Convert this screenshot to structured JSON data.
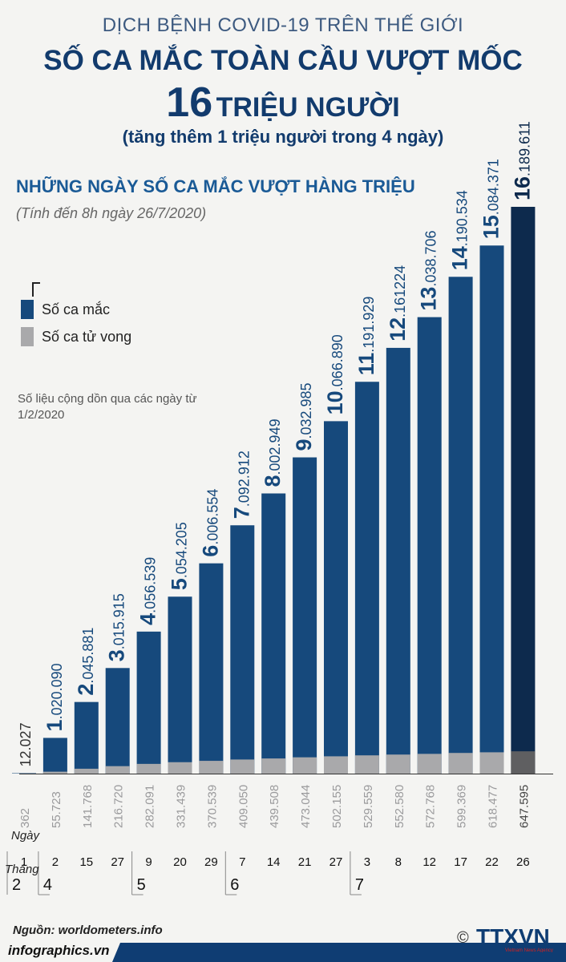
{
  "header": {
    "kicker": "DỊCH BỆNH COVID-19 TRÊN THẾ GIỚI",
    "headline": "SỐ CA MẮC TOÀN CẦU VƯỢT MỐC",
    "headline_number": "16",
    "headline_unit": "TRIỆU NGƯỜI",
    "subheadline": "(tăng thêm 1 triệu người trong 4 ngày)"
  },
  "chart_title": "NHỮNG NGÀY SỐ CA MẮC VƯỢT HÀNG TRIỆU",
  "chart_note": "(Tính đến 8h ngày 26/7/2020)",
  "cumulative_note": "Số liệu cộng dồn qua các ngày từ 1/2/2020",
  "legend": {
    "cases": "Số ca mắc",
    "deaths": "Số ca tử vong"
  },
  "axis_labels": {
    "day": "Ngày",
    "month": "Tháng"
  },
  "source": "Nguồn: worldometers.info",
  "footer": "infographics.vn",
  "logo": {
    "copyright": "©",
    "name": "TTXVN",
    "tagline": "Vietnam News Agency"
  },
  "colors": {
    "cases": "#16497c",
    "cases_highlight": "#0d2a4d",
    "deaths": "#a9a9ab",
    "deaths_highlight": "#5f5f61",
    "title": "#123b6d",
    "footer_blue": "#0f3d73"
  },
  "chart_data": {
    "type": "bar",
    "categories": [
      "1/2",
      "2/4",
      "15/4",
      "27/4",
      "9/5",
      "20/5",
      "29/5",
      "7/6",
      "14/6",
      "21/6",
      "27/6",
      "3/7",
      "8/7",
      "12/7",
      "17/7",
      "22/7",
      "26/7"
    ],
    "days": [
      "1",
      "2",
      "15",
      "27",
      "9",
      "20",
      "29",
      "7",
      "14",
      "21",
      "27",
      "3",
      "8",
      "12",
      "17",
      "22",
      "26"
    ],
    "months": [
      {
        "label": "2",
        "start": 0,
        "end": 0
      },
      {
        "label": "4",
        "start": 1,
        "end": 3
      },
      {
        "label": "5",
        "start": 4,
        "end": 6
      },
      {
        "label": "6",
        "start": 7,
        "end": 10
      },
      {
        "label": "7",
        "start": 11,
        "end": 16
      }
    ],
    "series": [
      {
        "name": "Số ca mắc",
        "values": [
          12027,
          1020090,
          2045881,
          3015915,
          4056539,
          5054205,
          6006554,
          7092912,
          8002949,
          9032985,
          10066890,
          11191929,
          12161224,
          13038706,
          14190534,
          15084371,
          16189611
        ],
        "labels": [
          {
            "big": "",
            "small": "12.027"
          },
          {
            "big": "1",
            "small": ".020.090"
          },
          {
            "big": "2",
            "small": ".045.881"
          },
          {
            "big": "3",
            "small": ".015.915"
          },
          {
            "big": "4",
            "small": ".056.539"
          },
          {
            "big": "5",
            "small": ".054.205"
          },
          {
            "big": "6",
            "small": ".006.554"
          },
          {
            "big": "7",
            "small": ".092.912"
          },
          {
            "big": "8",
            "small": ".002.949"
          },
          {
            "big": "9",
            "small": ".032.985"
          },
          {
            "big": "10",
            "small": ".066.890"
          },
          {
            "big": "11",
            "small": ".191.929"
          },
          {
            "big": "12",
            "small": ".161224"
          },
          {
            "big": "13",
            "small": ".038.706"
          },
          {
            "big": "14",
            "small": ".190.534"
          },
          {
            "big": "15",
            "small": ".084.371"
          },
          {
            "big": "16",
            "small": ".189.611"
          }
        ]
      },
      {
        "name": "Số ca tử vong",
        "values": [
          362,
          55723,
          141768,
          216720,
          282091,
          331439,
          370539,
          409050,
          439508,
          473044,
          502155,
          529559,
          552580,
          572768,
          599369,
          618477,
          647595
        ],
        "labels": [
          "362",
          "55.723",
          "141.768",
          "216.720",
          "282.091",
          "331.439",
          "370.539",
          "409.050",
          "439.508",
          "473.044",
          "502.155",
          "529.559",
          "552.580",
          "572.768",
          "599.369",
          "618.477",
          "647.595"
        ]
      }
    ],
    "ylim": [
      0,
      16500000
    ],
    "highlight_index": 16
  }
}
